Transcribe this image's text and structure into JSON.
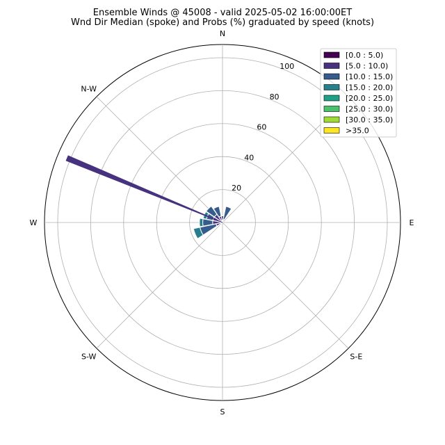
{
  "chart_data": {
    "type": "polar-bar",
    "title": "Ensemble Winds @ 45008 - valid 2025-05-02 16:00:00ET",
    "subtitle": "Wnd Dir Median (spoke) and Probs (%) graduated by speed (knots)",
    "direction_labels": [
      {
        "label": "N",
        "deg": 0
      },
      {
        "label": "E",
        "deg": 90
      },
      {
        "label": "S-E",
        "deg": 135
      },
      {
        "label": "S",
        "deg": 180
      },
      {
        "label": "S-W",
        "deg": 225
      },
      {
        "label": "W",
        "deg": 270
      },
      {
        "label": "N-W",
        "deg": 315
      }
    ],
    "radial_ticks": [
      "20",
      "40",
      "60",
      "80",
      "100"
    ],
    "radial_range": [
      0,
      108
    ],
    "grid": true,
    "legend_position": "top-right",
    "speed_bins": [
      {
        "name": "[0.0 : 5.0)",
        "color": "#440154"
      },
      {
        "name": "[5.0 : 10.0)",
        "color": "#46327e"
      },
      {
        "name": "[10.0 : 15.0)",
        "color": "#365c8d"
      },
      {
        "name": "[15.0 : 20.0)",
        "color": "#277f8e"
      },
      {
        "name": "[20.0 : 25.0)",
        "color": "#1fa187"
      },
      {
        "name": "[25.0 : 30.0)",
        "color": "#4ac16d"
      },
      {
        "name": "[30.0 : 35.0)",
        "color": "#a0da39"
      },
      {
        "name": ">35.0",
        "color": "#fde725"
      }
    ],
    "median_spoke": {
      "direction_deg": 292.5,
      "value": 100,
      "bin": 1
    },
    "bars": [
      {
        "direction_deg": 0,
        "values": [
          0,
          4,
          0,
          0,
          0,
          0,
          0,
          0
        ]
      },
      {
        "direction_deg": 22.5,
        "values": [
          0,
          2,
          8,
          0,
          0,
          0,
          0,
          0
        ]
      },
      {
        "direction_deg": 337.5,
        "values": [
          0,
          4,
          6,
          0,
          0,
          0,
          0,
          0
        ]
      },
      {
        "direction_deg": 315,
        "values": [
          0,
          6,
          6,
          0,
          0,
          0,
          0,
          0
        ]
      },
      {
        "direction_deg": 292.5,
        "values": [
          0,
          6,
          4,
          2,
          0,
          0,
          0,
          0
        ]
      },
      {
        "direction_deg": 270,
        "values": [
          0,
          6,
          6,
          2,
          0,
          0,
          0,
          0
        ]
      },
      {
        "direction_deg": 247.5,
        "values": [
          0,
          4,
          10,
          4,
          0,
          0,
          0,
          0
        ]
      },
      {
        "direction_deg": 225,
        "values": [
          0,
          2,
          0,
          0,
          0,
          0,
          0,
          0
        ]
      }
    ]
  }
}
